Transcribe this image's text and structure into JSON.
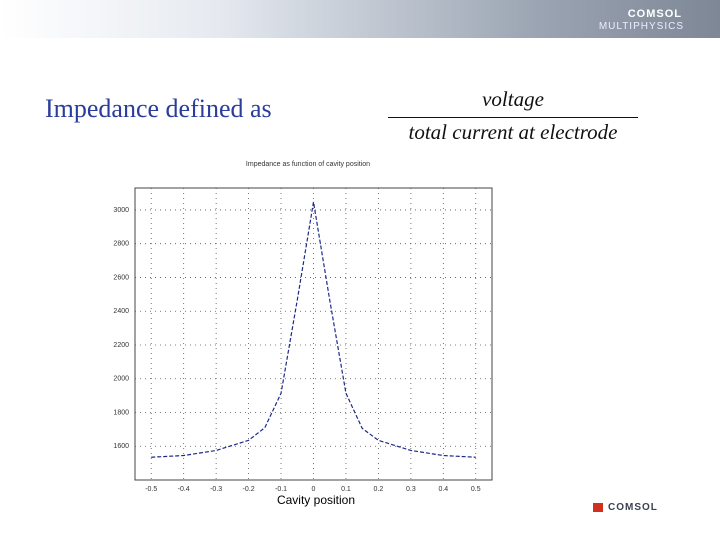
{
  "slide": {
    "brand": "COMSOL",
    "brand_sub": "MULTIPHYSICS",
    "heading": "Impedance defined as",
    "numerator": "voltage",
    "denominator": "total current at electrode",
    "logo": "COMSOL"
  },
  "chart_data": {
    "type": "line",
    "title": "Impedance as function of cavity position",
    "x_label": "Cavity position",
    "x": [
      -0.5,
      -0.4,
      -0.3,
      -0.2,
      -0.15,
      -0.1,
      -0.05,
      0,
      0.05,
      0.1,
      0.15,
      0.2,
      0.3,
      0.4,
      0.5
    ],
    "series": [
      {
        "color": "#1a2a8a",
        "values": [
          1535,
          1545,
          1575,
          1635,
          1710,
          1914,
          2466,
          3047,
          2466,
          1914,
          1706,
          1635,
          1575,
          1545,
          1535
        ]
      }
    ],
    "xlim": [
      -0.55,
      0.55
    ],
    "ylim": [
      1400,
      3130
    ],
    "xticks": [
      -0.5,
      -0.4,
      -0.3,
      -0.2,
      -0.1,
      0,
      0.1,
      0.2,
      0.3,
      0.4,
      0.5
    ],
    "yticks": [
      1600,
      1800,
      2000,
      2200,
      2400,
      2600,
      2800,
      3000
    ],
    "grid": true
  }
}
